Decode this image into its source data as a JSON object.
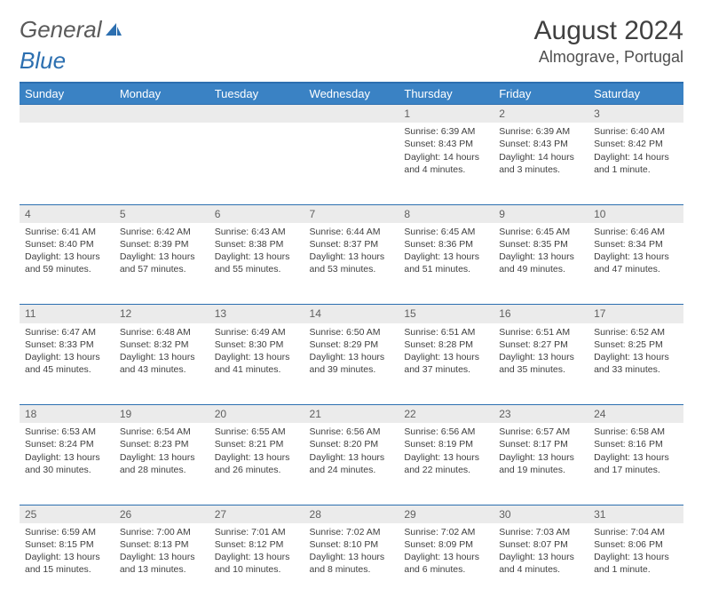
{
  "logo": {
    "text1": "General",
    "text2": "Blue"
  },
  "title": "August 2024",
  "location": "Almograve, Portugal",
  "colors": {
    "header_bg": "#3a82c4",
    "header_text": "#ffffff",
    "border": "#2c6fb0",
    "daynum_bg": "#ebebeb",
    "body_text": "#404040"
  },
  "day_headers": [
    "Sunday",
    "Monday",
    "Tuesday",
    "Wednesday",
    "Thursday",
    "Friday",
    "Saturday"
  ],
  "weeks": [
    [
      null,
      null,
      null,
      null,
      {
        "n": "1",
        "sr": "Sunrise: 6:39 AM",
        "ss": "Sunset: 8:43 PM",
        "d1": "Daylight: 14 hours",
        "d2": "and 4 minutes."
      },
      {
        "n": "2",
        "sr": "Sunrise: 6:39 AM",
        "ss": "Sunset: 8:43 PM",
        "d1": "Daylight: 14 hours",
        "d2": "and 3 minutes."
      },
      {
        "n": "3",
        "sr": "Sunrise: 6:40 AM",
        "ss": "Sunset: 8:42 PM",
        "d1": "Daylight: 14 hours",
        "d2": "and 1 minute."
      }
    ],
    [
      {
        "n": "4",
        "sr": "Sunrise: 6:41 AM",
        "ss": "Sunset: 8:40 PM",
        "d1": "Daylight: 13 hours",
        "d2": "and 59 minutes."
      },
      {
        "n": "5",
        "sr": "Sunrise: 6:42 AM",
        "ss": "Sunset: 8:39 PM",
        "d1": "Daylight: 13 hours",
        "d2": "and 57 minutes."
      },
      {
        "n": "6",
        "sr": "Sunrise: 6:43 AM",
        "ss": "Sunset: 8:38 PM",
        "d1": "Daylight: 13 hours",
        "d2": "and 55 minutes."
      },
      {
        "n": "7",
        "sr": "Sunrise: 6:44 AM",
        "ss": "Sunset: 8:37 PM",
        "d1": "Daylight: 13 hours",
        "d2": "and 53 minutes."
      },
      {
        "n": "8",
        "sr": "Sunrise: 6:45 AM",
        "ss": "Sunset: 8:36 PM",
        "d1": "Daylight: 13 hours",
        "d2": "and 51 minutes."
      },
      {
        "n": "9",
        "sr": "Sunrise: 6:45 AM",
        "ss": "Sunset: 8:35 PM",
        "d1": "Daylight: 13 hours",
        "d2": "and 49 minutes."
      },
      {
        "n": "10",
        "sr": "Sunrise: 6:46 AM",
        "ss": "Sunset: 8:34 PM",
        "d1": "Daylight: 13 hours",
        "d2": "and 47 minutes."
      }
    ],
    [
      {
        "n": "11",
        "sr": "Sunrise: 6:47 AM",
        "ss": "Sunset: 8:33 PM",
        "d1": "Daylight: 13 hours",
        "d2": "and 45 minutes."
      },
      {
        "n": "12",
        "sr": "Sunrise: 6:48 AM",
        "ss": "Sunset: 8:32 PM",
        "d1": "Daylight: 13 hours",
        "d2": "and 43 minutes."
      },
      {
        "n": "13",
        "sr": "Sunrise: 6:49 AM",
        "ss": "Sunset: 8:30 PM",
        "d1": "Daylight: 13 hours",
        "d2": "and 41 minutes."
      },
      {
        "n": "14",
        "sr": "Sunrise: 6:50 AM",
        "ss": "Sunset: 8:29 PM",
        "d1": "Daylight: 13 hours",
        "d2": "and 39 minutes."
      },
      {
        "n": "15",
        "sr": "Sunrise: 6:51 AM",
        "ss": "Sunset: 8:28 PM",
        "d1": "Daylight: 13 hours",
        "d2": "and 37 minutes."
      },
      {
        "n": "16",
        "sr": "Sunrise: 6:51 AM",
        "ss": "Sunset: 8:27 PM",
        "d1": "Daylight: 13 hours",
        "d2": "and 35 minutes."
      },
      {
        "n": "17",
        "sr": "Sunrise: 6:52 AM",
        "ss": "Sunset: 8:25 PM",
        "d1": "Daylight: 13 hours",
        "d2": "and 33 minutes."
      }
    ],
    [
      {
        "n": "18",
        "sr": "Sunrise: 6:53 AM",
        "ss": "Sunset: 8:24 PM",
        "d1": "Daylight: 13 hours",
        "d2": "and 30 minutes."
      },
      {
        "n": "19",
        "sr": "Sunrise: 6:54 AM",
        "ss": "Sunset: 8:23 PM",
        "d1": "Daylight: 13 hours",
        "d2": "and 28 minutes."
      },
      {
        "n": "20",
        "sr": "Sunrise: 6:55 AM",
        "ss": "Sunset: 8:21 PM",
        "d1": "Daylight: 13 hours",
        "d2": "and 26 minutes."
      },
      {
        "n": "21",
        "sr": "Sunrise: 6:56 AM",
        "ss": "Sunset: 8:20 PM",
        "d1": "Daylight: 13 hours",
        "d2": "and 24 minutes."
      },
      {
        "n": "22",
        "sr": "Sunrise: 6:56 AM",
        "ss": "Sunset: 8:19 PM",
        "d1": "Daylight: 13 hours",
        "d2": "and 22 minutes."
      },
      {
        "n": "23",
        "sr": "Sunrise: 6:57 AM",
        "ss": "Sunset: 8:17 PM",
        "d1": "Daylight: 13 hours",
        "d2": "and 19 minutes."
      },
      {
        "n": "24",
        "sr": "Sunrise: 6:58 AM",
        "ss": "Sunset: 8:16 PM",
        "d1": "Daylight: 13 hours",
        "d2": "and 17 minutes."
      }
    ],
    [
      {
        "n": "25",
        "sr": "Sunrise: 6:59 AM",
        "ss": "Sunset: 8:15 PM",
        "d1": "Daylight: 13 hours",
        "d2": "and 15 minutes."
      },
      {
        "n": "26",
        "sr": "Sunrise: 7:00 AM",
        "ss": "Sunset: 8:13 PM",
        "d1": "Daylight: 13 hours",
        "d2": "and 13 minutes."
      },
      {
        "n": "27",
        "sr": "Sunrise: 7:01 AM",
        "ss": "Sunset: 8:12 PM",
        "d1": "Daylight: 13 hours",
        "d2": "and 10 minutes."
      },
      {
        "n": "28",
        "sr": "Sunrise: 7:02 AM",
        "ss": "Sunset: 8:10 PM",
        "d1": "Daylight: 13 hours",
        "d2": "and 8 minutes."
      },
      {
        "n": "29",
        "sr": "Sunrise: 7:02 AM",
        "ss": "Sunset: 8:09 PM",
        "d1": "Daylight: 13 hours",
        "d2": "and 6 minutes."
      },
      {
        "n": "30",
        "sr": "Sunrise: 7:03 AM",
        "ss": "Sunset: 8:07 PM",
        "d1": "Daylight: 13 hours",
        "d2": "and 4 minutes."
      },
      {
        "n": "31",
        "sr": "Sunrise: 7:04 AM",
        "ss": "Sunset: 8:06 PM",
        "d1": "Daylight: 13 hours",
        "d2": "and 1 minute."
      }
    ]
  ]
}
